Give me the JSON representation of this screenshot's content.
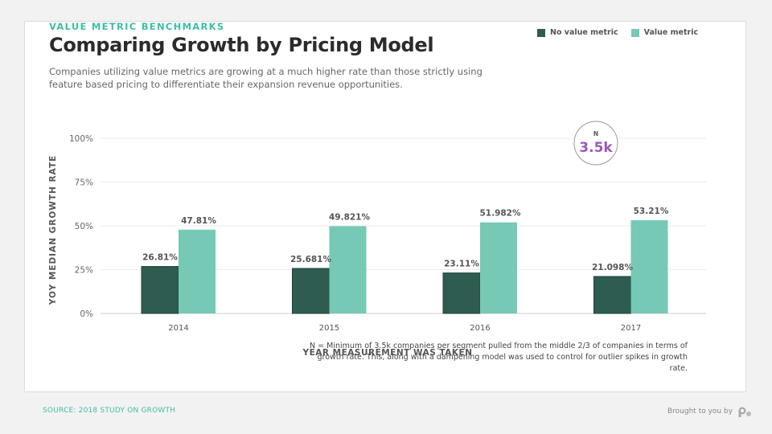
{
  "header": {
    "kicker": "VALUE METRIC BENCHMARKS",
    "title": "Comparing Growth by Pricing Model",
    "subtitle": "Companies utilizing value metrics are growing at a much higher rate than those strictly using feature based pricing to differentiate their expansion revenue opportunities."
  },
  "badge": {
    "label": "N",
    "value": "3.5k"
  },
  "footnote": "N = Minimum of 3.5k companies per segment pulled from the middle 2/3 of companies in terms of growth rate. This, along with a dampening model was used to control for outlier spikes in growth rate.",
  "footer": {
    "source": "SOURCE: 2018 STUDY ON GROWTH",
    "brand": "Brought to you by",
    "brand_logo_icon": "profitwell-logo-icon"
  },
  "colors": {
    "no_value_metric": "#2e5c50",
    "value_metric": "#76c9b4",
    "accent": "#3dbfa2",
    "badge_text": "#9b59b6"
  },
  "chart_data": {
    "type": "bar",
    "categories": [
      "2014",
      "2015",
      "2016",
      "2017"
    ],
    "series": [
      {
        "name": "No value metric",
        "values": [
          26.81,
          25.681,
          23.11,
          21.098
        ],
        "labels": [
          "26.81%",
          "25.681%",
          "23.11%",
          "21.098%"
        ]
      },
      {
        "name": "Value metric",
        "values": [
          47.81,
          49.821,
          51.982,
          53.21
        ],
        "labels": [
          "47.81%",
          "49.821%",
          "51.982%",
          "53.21%"
        ]
      }
    ],
    "xlabel": "YEAR MEASUREMENT WAS TAKEN",
    "ylabel": "YOY MEDIAN GROWTH RATE",
    "ylim": [
      0,
      100
    ],
    "yticks": [
      0,
      25,
      50,
      75,
      100
    ],
    "ytick_labels": [
      "0%",
      "25%",
      "50%",
      "75%",
      "100%"
    ],
    "grid": true,
    "legend": "top-right"
  }
}
